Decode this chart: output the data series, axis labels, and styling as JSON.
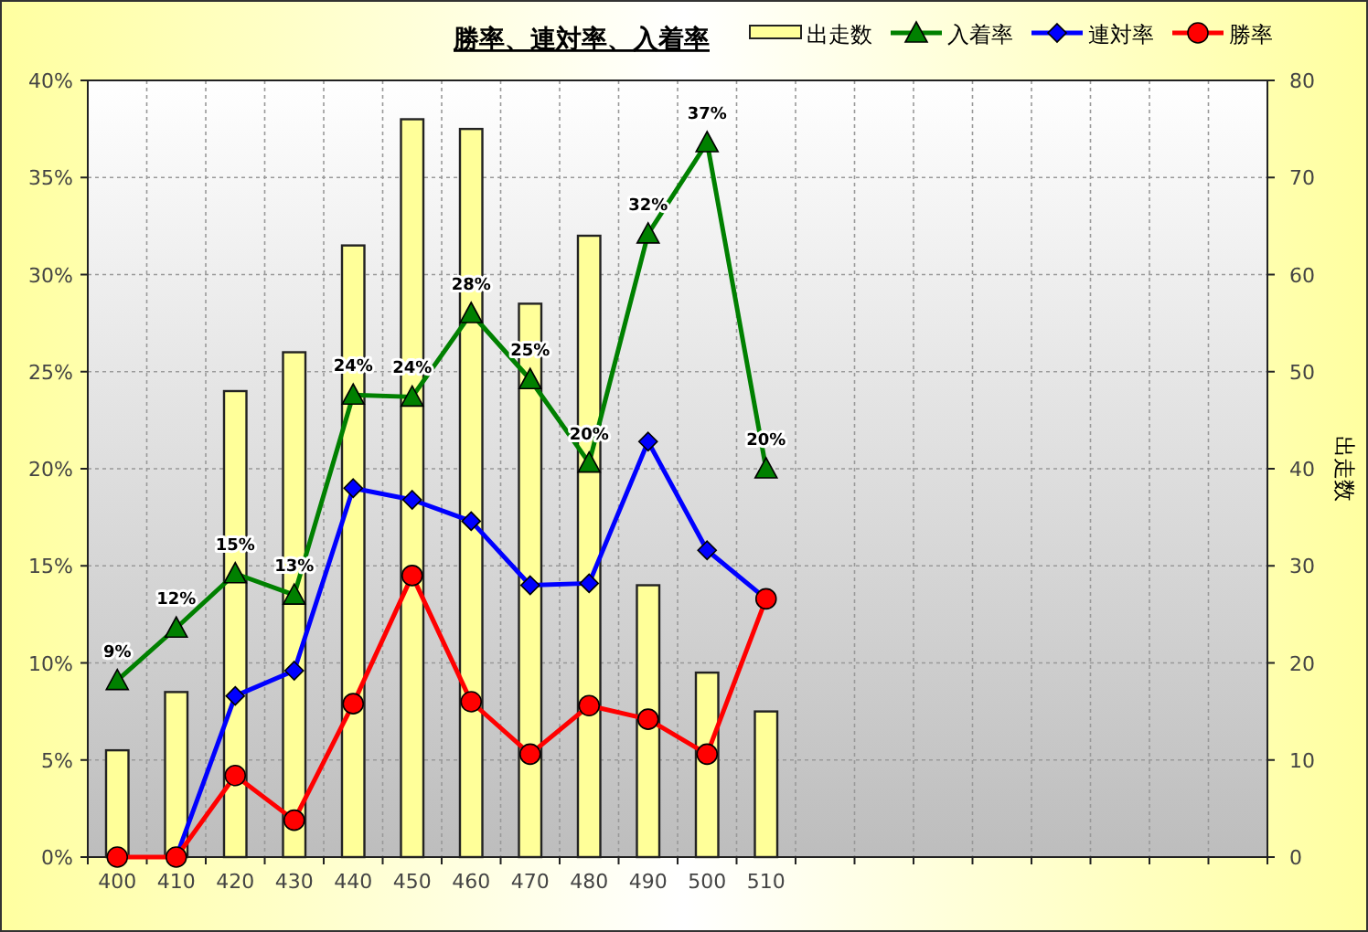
{
  "chart_data": {
    "type": "bar",
    "title": "勝率、連対率、入着率",
    "y2label": "出走数",
    "categories": [
      "400",
      "410",
      "420",
      "430",
      "440",
      "450",
      "460",
      "470",
      "480",
      "490",
      "500",
      "510",
      null,
      null,
      null,
      null,
      null,
      null,
      null,
      null
    ],
    "series": [
      {
        "name": "出走数",
        "axis": "y2",
        "color": "#ffff99",
        "values": [
          11,
          17,
          48,
          52,
          63,
          76,
          75,
          57,
          64,
          28,
          19,
          15,
          null,
          null,
          null,
          null,
          null,
          null,
          null,
          null
        ]
      },
      {
        "name": "入着率",
        "type": "line",
        "marker": "triangle",
        "color": "#008000",
        "values": [
          9.1,
          11.8,
          14.6,
          13.5,
          23.8,
          23.7,
          28.0,
          24.6,
          20.3,
          32.1,
          36.8,
          20.0,
          null,
          null,
          null,
          null,
          null,
          null,
          null,
          null
        ],
        "value_labels": [
          "9%",
          "12%",
          "15%",
          "13%",
          "24%",
          "24%",
          "28%",
          "25%",
          "20%",
          "32%",
          "37%",
          "20%",
          null,
          null,
          null,
          null,
          null,
          null,
          null,
          null
        ]
      },
      {
        "name": "連対率",
        "type": "line",
        "marker": "diamond",
        "color": "#0000ff",
        "values": [
          null,
          0,
          8.3,
          9.6,
          19.0,
          18.4,
          17.3,
          14.0,
          14.1,
          21.4,
          15.8,
          13.3,
          null,
          null,
          null,
          null,
          null,
          null,
          null,
          null
        ]
      },
      {
        "name": "勝率",
        "type": "line",
        "marker": "circle",
        "color": "#ff0000",
        "values": [
          0,
          0,
          4.2,
          1.9,
          7.9,
          14.5,
          8.0,
          5.3,
          7.8,
          7.1,
          5.3,
          13.3,
          null,
          null,
          null,
          null,
          null,
          null,
          null,
          null
        ]
      }
    ],
    "ylim": [
      0,
      40
    ],
    "yticks": [
      {
        "value": 0,
        "label": "0%"
      },
      {
        "value": 5,
        "label": "5%"
      },
      {
        "value": 10,
        "label": "10%"
      },
      {
        "value": 15,
        "label": "15%"
      },
      {
        "value": 20,
        "label": "20%"
      },
      {
        "value": 25,
        "label": "25%"
      },
      {
        "value": 30,
        "label": "30%"
      },
      {
        "value": 35,
        "label": "35%"
      },
      {
        "value": 40,
        "label": "40%"
      }
    ],
    "y2lim": [
      0,
      80
    ],
    "y2ticks": [
      0,
      10,
      20,
      30,
      40,
      50,
      60,
      70,
      80
    ],
    "grid": true,
    "legend": "top right"
  }
}
